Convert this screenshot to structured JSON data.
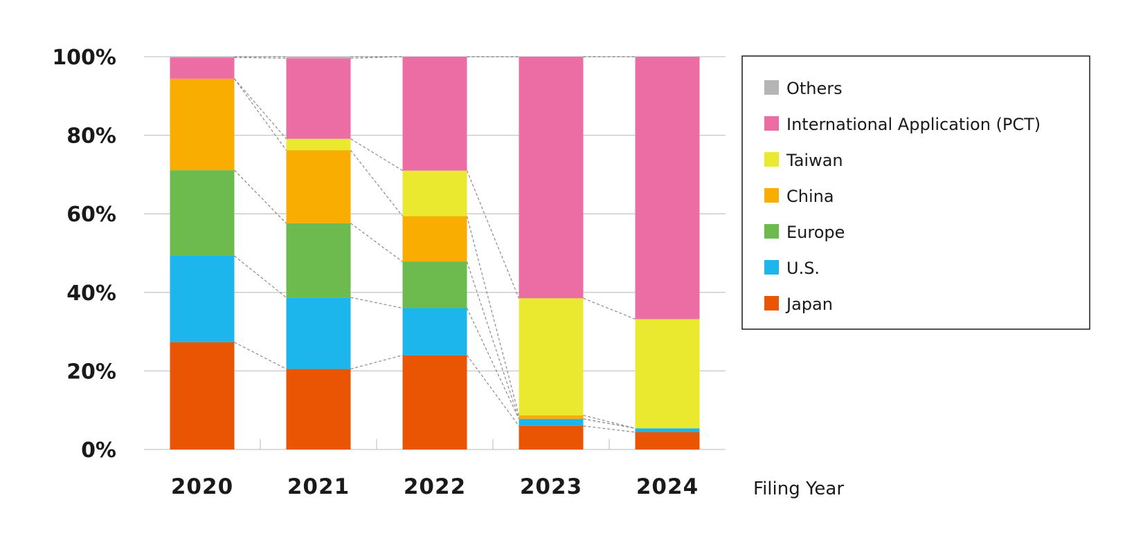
{
  "chart_data": {
    "type": "bar",
    "stacked": true,
    "percent": true,
    "title": "",
    "xlabel": "Filing Year",
    "ylabel": "",
    "ylim": [
      0,
      100
    ],
    "yticks": [
      "0%",
      "20%",
      "40%",
      "60%",
      "80%",
      "100%"
    ],
    "categories": [
      "2020",
      "2021",
      "2022",
      "2023",
      "2024"
    ],
    "legend_position": "right",
    "connector_lines": true,
    "series": [
      {
        "name": "Japan",
        "color": "#EA5504",
        "values": [
          27.3,
          20.5,
          24.0,
          6.0,
          4.4
        ]
      },
      {
        "name": "U.S.",
        "color": "#1DB6EC",
        "values": [
          22.0,
          18.2,
          12.0,
          1.8,
          1.0
        ]
      },
      {
        "name": "Europe",
        "color": "#6DBB4F",
        "values": [
          21.8,
          18.9,
          11.8,
          0.0,
          0.0
        ]
      },
      {
        "name": "China",
        "color": "#F8AD00",
        "values": [
          23.3,
          18.6,
          11.6,
          0.9,
          0.0
        ]
      },
      {
        "name": "Taiwan",
        "color": "#EBE830",
        "values": [
          0.0,
          2.9,
          11.6,
          29.8,
          27.8
        ]
      },
      {
        "name": "International Application (PCT)",
        "color": "#EC6CA4",
        "values": [
          5.4,
          20.5,
          29.0,
          61.5,
          66.8
        ]
      },
      {
        "name": "Others",
        "color": "#B5B5B5",
        "values": [
          0.2,
          0.4,
          0.0,
          0.0,
          0.0
        ]
      }
    ],
    "legend_order": [
      "Others",
      "International Application (PCT)",
      "Taiwan",
      "China",
      "Europe",
      "U.S.",
      "Japan"
    ]
  }
}
